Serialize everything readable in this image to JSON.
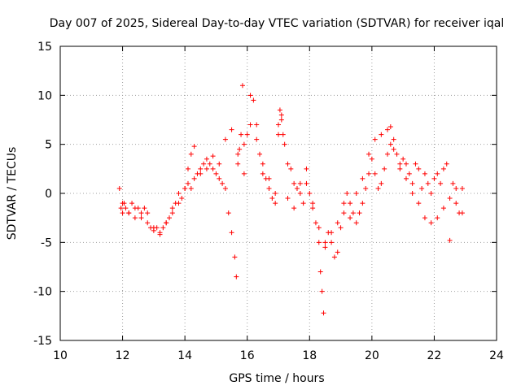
{
  "chart_data": {
    "type": "scatter",
    "title": "Day 007 of 2025, Sidereal Day-to-day VTEC variation (SDTVAR) for receiver iqal",
    "xlabel": "GPS time / hours",
    "ylabel": "SDTVAR / TECUs",
    "xlim": [
      10,
      24
    ],
    "ylim": [
      -15,
      15
    ],
    "x_ticks": [
      "10",
      "12",
      "14",
      "16",
      "18",
      "20",
      "22",
      "24"
    ],
    "y_ticks": [
      "15",
      "10",
      "5",
      "0",
      "-5",
      "-10",
      "-15"
    ],
    "grid": true,
    "marker": "+",
    "series_color": "#ff0000",
    "series": [
      {
        "name": "iqal",
        "x": [
          11.9,
          11.95,
          12.0,
          12.05,
          12.1,
          12.2,
          12.3,
          12.4,
          12.5,
          12.6,
          12.7,
          12.8,
          12.9,
          13.0,
          13.1,
          13.2,
          13.3,
          13.4,
          13.5,
          13.6,
          13.7,
          13.8,
          13.9,
          14.0,
          14.1,
          14.2,
          14.3,
          14.4,
          14.5,
          14.6,
          14.7,
          14.8,
          14.9,
          15.0,
          15.1,
          15.2,
          15.3,
          15.4,
          15.5,
          15.6,
          15.65,
          15.7,
          15.75,
          15.8,
          15.85,
          15.9,
          16.0,
          16.1,
          16.2,
          16.3,
          16.4,
          16.5,
          16.6,
          16.7,
          16.8,
          16.9,
          17.0,
          17.1,
          17.2,
          17.3,
          17.4,
          17.5,
          17.6,
          17.7,
          17.8,
          17.9,
          18.0,
          18.1,
          18.2,
          18.3,
          18.35,
          18.4,
          18.45,
          18.5,
          18.6,
          18.7,
          18.8,
          18.9,
          19.0,
          19.1,
          19.2,
          19.3,
          19.4,
          19.5,
          19.6,
          19.7,
          19.8,
          19.9,
          20.0,
          20.1,
          20.2,
          20.3,
          20.4,
          20.5,
          20.6,
          20.7,
          20.8,
          20.9,
          21.0,
          21.1,
          21.2,
          21.3,
          21.4,
          21.5,
          21.6,
          21.7,
          21.8,
          21.9,
          22.0,
          22.1,
          22.2,
          22.3,
          22.4,
          22.5,
          22.6,
          22.7,
          22.8,
          22.9,
          12.0,
          12.2,
          12.4,
          12.6,
          12.8,
          13.0,
          13.2,
          13.4,
          13.6,
          13.8,
          14.0,
          14.1,
          14.2,
          14.3,
          14.5,
          14.7,
          14.9,
          15.1,
          15.3,
          15.5,
          15.7,
          15.9,
          16.1,
          16.3,
          16.5,
          16.7,
          16.9,
          17.0,
          17.05,
          17.1,
          17.15,
          17.3,
          17.5,
          17.7,
          17.9,
          18.1,
          18.3,
          18.5,
          18.7,
          18.9,
          19.1,
          19.3,
          19.5,
          19.7,
          19.9,
          20.1,
          20.3,
          20.5,
          20.6,
          20.7,
          20.9,
          21.1,
          21.3,
          21.5,
          21.7,
          21.9,
          22.1,
          22.3,
          22.5,
          22.7,
          22.9
        ],
        "y": [
          0.5,
          -1.5,
          -2.0,
          -1.0,
          -1.5,
          -2.0,
          -1.0,
          -2.5,
          -1.5,
          -2.0,
          -1.5,
          -2.0,
          -3.5,
          -3.8,
          -3.5,
          -4.0,
          -3.5,
          -3.0,
          -2.5,
          -1.5,
          -1.0,
          0.0,
          -0.5,
          0.5,
          1.0,
          0.5,
          1.5,
          2.0,
          2.5,
          3.0,
          2.5,
          3.0,
          2.5,
          2.0,
          1.5,
          1.0,
          0.5,
          -2.0,
          -4.0,
          -6.5,
          -8.5,
          3.0,
          4.5,
          6.0,
          11.0,
          5.0,
          6.0,
          7.0,
          9.5,
          7.0,
          4.0,
          2.0,
          1.5,
          0.5,
          -0.5,
          0.0,
          6.0,
          8.0,
          5.0,
          3.0,
          2.5,
          1.0,
          0.5,
          0.0,
          -1.0,
          1.0,
          0.0,
          -1.5,
          -3.0,
          -5.0,
          -8.0,
          -10.0,
          -12.2,
          -5.5,
          -4.0,
          -5.0,
          -6.5,
          -6.0,
          -3.5,
          -2.0,
          0.0,
          -1.0,
          -2.0,
          -3.0,
          -2.0,
          -1.0,
          0.5,
          2.0,
          3.5,
          2.0,
          0.5,
          1.0,
          2.5,
          4.0,
          6.8,
          5.5,
          4.0,
          2.5,
          3.5,
          3.0,
          2.0,
          1.0,
          3.0,
          2.5,
          0.5,
          2.0,
          1.0,
          0.0,
          1.5,
          2.0,
          1.0,
          2.5,
          3.0,
          -4.8,
          1.0,
          0.5,
          -2.0,
          0.5,
          -1.0,
          -2.0,
          -1.5,
          -2.5,
          -3.0,
          -3.5,
          -4.2,
          -3.0,
          -2.0,
          -1.0,
          0.5,
          2.5,
          4.0,
          4.8,
          2.0,
          3.5,
          3.8,
          3.0,
          5.5,
          6.5,
          4.0,
          2.0,
          10.0,
          5.5,
          3.0,
          1.5,
          -1.0,
          7.0,
          8.5,
          7.5,
          6.0,
          -0.5,
          -1.5,
          1.0,
          2.5,
          -1.0,
          -3.5,
          -5.0,
          -4.0,
          -3.0,
          -1.0,
          -2.5,
          0.0,
          1.5,
          4.0,
          5.5,
          6.0,
          6.5,
          5.0,
          4.5,
          3.0,
          1.5,
          0.0,
          -1.0,
          -2.5,
          -3.0,
          -2.5,
          -1.5,
          -0.5,
          -1.0,
          -2.0
        ]
      }
    ]
  }
}
